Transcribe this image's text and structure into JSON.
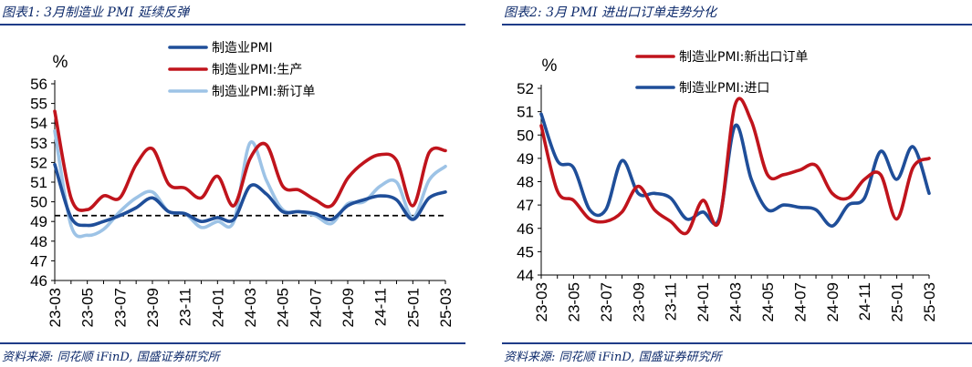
{
  "panels": [
    {
      "title": "图表1:  3月制造业 PMI 延续反弹",
      "source": "资料来源:  同花顺 iFinD,  国盛证券研究所"
    },
    {
      "title": "图表2:  3月 PMI 进出口订单走势分化",
      "source": "资料来源:  同花顺 iFinD,  国盛证券研究所"
    }
  ],
  "chart_data": [
    {
      "type": "line",
      "unit_label": "%",
      "ylim": [
        46,
        56
      ],
      "yticks": [
        46,
        47,
        48,
        49,
        50,
        51,
        52,
        53,
        54,
        55,
        56
      ],
      "x": [
        "23-03",
        "23-04",
        "23-05",
        "23-06",
        "23-07",
        "23-08",
        "23-09",
        "23-10",
        "23-11",
        "23-12",
        "24-01",
        "24-02",
        "24-03",
        "24-04",
        "24-05",
        "24-06",
        "24-07",
        "24-08",
        "24-09",
        "24-10",
        "24-11",
        "24-12",
        "25-01",
        "25-02",
        "25-03"
      ],
      "xtick_labels": [
        "23-03",
        "23-05",
        "23-07",
        "23-09",
        "23-11",
        "24-01",
        "24-03",
        "24-05",
        "24-07",
        "24-09",
        "24-11",
        "25-01",
        "25-03"
      ],
      "grid": false,
      "legend_position": "top-center",
      "reference_line": {
        "value": 49.3,
        "style": "dashed",
        "color": "#000000"
      },
      "series": [
        {
          "name": "制造业PMI",
          "color": "#1f4e99",
          "values": [
            51.9,
            49.2,
            48.8,
            49.0,
            49.3,
            49.7,
            50.2,
            49.5,
            49.4,
            49.0,
            49.2,
            49.1,
            50.8,
            50.4,
            49.5,
            49.5,
            49.4,
            49.1,
            49.8,
            50.1,
            50.3,
            50.1,
            49.1,
            50.2,
            50.5
          ]
        },
        {
          "name": "制造业PMI:生产",
          "color": "#c0141c",
          "values": [
            54.6,
            50.2,
            49.6,
            50.3,
            50.2,
            51.9,
            52.7,
            50.9,
            50.7,
            50.2,
            51.3,
            49.8,
            52.2,
            52.9,
            50.8,
            50.6,
            50.1,
            49.8,
            51.2,
            52.0,
            52.4,
            52.1,
            49.8,
            52.5,
            52.6
          ]
        },
        {
          "name": "制造业PMI:新订单",
          "color": "#9dc3e6",
          "values": [
            53.6,
            48.8,
            48.3,
            48.6,
            49.5,
            50.2,
            50.5,
            49.5,
            49.4,
            48.7,
            49.0,
            49.0,
            53.0,
            51.1,
            49.6,
            49.5,
            49.3,
            48.9,
            49.9,
            50.0,
            50.8,
            51.0,
            49.2,
            51.1,
            51.8
          ]
        }
      ]
    },
    {
      "type": "line",
      "unit_label": "%",
      "ylim": [
        44,
        52
      ],
      "yticks": [
        44,
        45,
        46,
        47,
        48,
        49,
        50,
        51,
        52
      ],
      "x": [
        "23-03",
        "23-04",
        "23-05",
        "23-06",
        "23-07",
        "23-08",
        "23-09",
        "23-10",
        "23-11",
        "23-12",
        "24-01",
        "24-02",
        "24-03",
        "24-04",
        "24-05",
        "24-06",
        "24-07",
        "24-08",
        "24-09",
        "24-10",
        "24-11",
        "24-12",
        "25-01",
        "25-02",
        "25-03"
      ],
      "xtick_labels": [
        "23-03",
        "23-05",
        "23-07",
        "23-09",
        "23-11",
        "24-01",
        "24-03",
        "24-05",
        "24-07",
        "24-09",
        "24-11",
        "25-01",
        "25-03"
      ],
      "grid": false,
      "legend_position": "top-center",
      "series": [
        {
          "name": "制造业PMI:新出口订单",
          "color": "#c0141c",
          "values": [
            50.4,
            47.6,
            47.2,
            46.4,
            46.3,
            46.7,
            47.8,
            46.8,
            46.3,
            45.8,
            47.2,
            46.3,
            51.3,
            50.6,
            48.3,
            48.3,
            48.5,
            48.7,
            47.5,
            47.3,
            48.1,
            48.3,
            46.4,
            48.6,
            49.0
          ]
        },
        {
          "name": "制造业PMI:进口",
          "color": "#1f4e99",
          "values": [
            50.9,
            48.9,
            48.6,
            46.8,
            46.8,
            48.9,
            47.5,
            47.5,
            47.3,
            46.4,
            46.7,
            46.4,
            50.4,
            48.1,
            46.8,
            47.0,
            46.9,
            46.8,
            46.1,
            47.0,
            47.3,
            49.3,
            48.1,
            49.5,
            47.5
          ]
        }
      ]
    }
  ]
}
